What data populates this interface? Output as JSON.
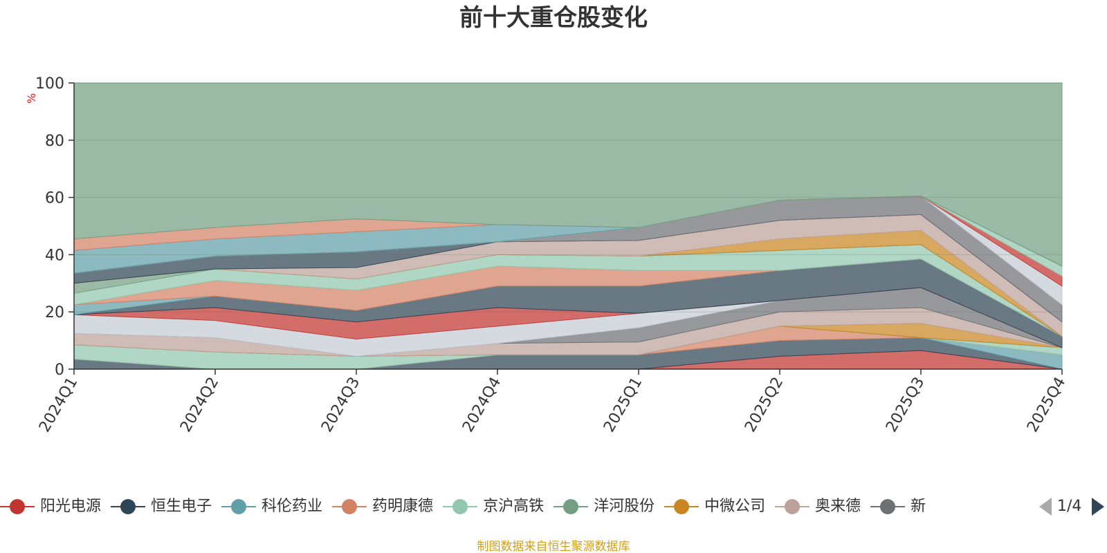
{
  "title": "前十大重仓股变化",
  "footer": "制图数据来自恒生聚源数据库",
  "legend_page": "1/4",
  "chart_data": {
    "type": "area",
    "title": "前十大重仓股变化",
    "ylabel": "%",
    "ylim": [
      0,
      100
    ],
    "yticks": [
      0,
      20,
      40,
      60,
      80,
      100
    ],
    "grid": true,
    "legend_position": "bottom",
    "categories": [
      "2024Q1",
      "2024Q2",
      "2024Q3",
      "2024Q4",
      "2025Q1",
      "2025Q2",
      "2025Q3",
      "2025Q4"
    ],
    "series": [
      {
        "name": "阳光电源",
        "color": "#c23531",
        "values": [
          0,
          0,
          0,
          0,
          0,
          4.5,
          6.5,
          0
        ]
      },
      {
        "name": "恒生电子",
        "color": "#2f4554",
        "values": [
          3.5,
          0,
          0,
          5,
          5,
          5.5,
          4.5,
          0
        ]
      },
      {
        "name": "科伦药业",
        "color": "#61a0a8",
        "values": [
          0,
          0,
          0,
          0,
          0,
          0,
          0,
          5
        ]
      },
      {
        "name": "药明康德",
        "color": "#d48265",
        "values": [
          0,
          0,
          0,
          0,
          0,
          5,
          0,
          0
        ]
      },
      {
        "name": "京沪高铁",
        "color": "#91c7ae",
        "values": [
          5,
          6,
          4.5,
          0,
          0,
          0,
          0,
          2.5
        ]
      },
      {
        "name": "洋河股份",
        "color": "#749f83",
        "values": [
          0,
          0,
          0,
          0,
          0,
          0,
          0,
          0
        ]
      },
      {
        "name": "中微公司",
        "color": "#ca8622",
        "values": [
          0,
          0,
          0,
          0,
          0,
          0,
          5,
          0
        ]
      },
      {
        "name": "奥来德",
        "color": "#bda29a",
        "values": [
          4,
          5,
          0,
          4,
          4.5,
          5,
          5.5,
          0
        ]
      },
      {
        "name": "新",
        "color": "#6e7074",
        "values": [
          0,
          0,
          0,
          0,
          5,
          4,
          7,
          0
        ]
      },
      {
        "name": "",
        "color": "#c4ccd3",
        "values": [
          6.5,
          6,
          6,
          6,
          5,
          0,
          0,
          0
        ]
      },
      {
        "name": "",
        "color": "#c23531",
        "values": [
          0,
          4.5,
          6,
          6.5,
          0,
          0,
          0,
          0
        ]
      },
      {
        "name": "",
        "color": "#2f4554",
        "values": [
          0,
          4,
          4,
          7.5,
          9.5,
          10.5,
          10,
          4
        ]
      },
      {
        "name": "",
        "color": "#61a0a8",
        "values": [
          3.5,
          0,
          0,
          0,
          0,
          0,
          0,
          0
        ]
      },
      {
        "name": "",
        "color": "#d48265",
        "values": [
          0,
          5.5,
          7,
          7,
          5.5,
          0,
          0,
          0
        ]
      },
      {
        "name": "",
        "color": "#91c7ae",
        "values": [
          4,
          4,
          4,
          4,
          5,
          7,
          5,
          0
        ]
      },
      {
        "name": "",
        "color": "#749f83",
        "values": [
          3.5,
          0,
          0,
          0,
          0,
          0,
          0,
          0
        ]
      },
      {
        "name": "",
        "color": "#ca8622",
        "values": [
          0,
          0,
          0,
          0,
          0,
          4,
          5,
          0
        ]
      },
      {
        "name": "",
        "color": "#bda29a",
        "values": [
          0,
          0,
          4,
          4.5,
          5.5,
          6.5,
          5.5,
          5
        ]
      },
      {
        "name": "",
        "color": "#2f4554",
        "values": [
          3.5,
          4.5,
          5.5,
          0,
          0,
          0,
          0,
          0
        ]
      },
      {
        "name": "",
        "color": "#6e7074",
        "values": [
          0,
          0,
          0,
          0,
          4.5,
          7,
          6.5,
          6
        ]
      },
      {
        "name": "",
        "color": "#c4ccd3",
        "values": [
          0,
          0,
          0,
          0,
          0,
          0,
          0,
          6.5
        ]
      },
      {
        "name": "",
        "color": "#c23531",
        "values": [
          0,
          0,
          0,
          0,
          0,
          0,
          0,
          3.5
        ]
      },
      {
        "name": "",
        "color": "#91c7ae",
        "values": [
          0,
          0,
          0,
          0,
          0,
          0,
          0,
          3.5
        ]
      },
      {
        "name": "",
        "color": "#61a0a8",
        "values": [
          8,
          6,
          7,
          6,
          0,
          0,
          0,
          0
        ]
      },
      {
        "name": "",
        "color": "#d48265",
        "values": [
          4,
          4,
          4.5,
          0,
          0,
          0,
          0,
          0
        ]
      }
    ],
    "remainder": {
      "name": "",
      "color": "#749f83"
    }
  }
}
